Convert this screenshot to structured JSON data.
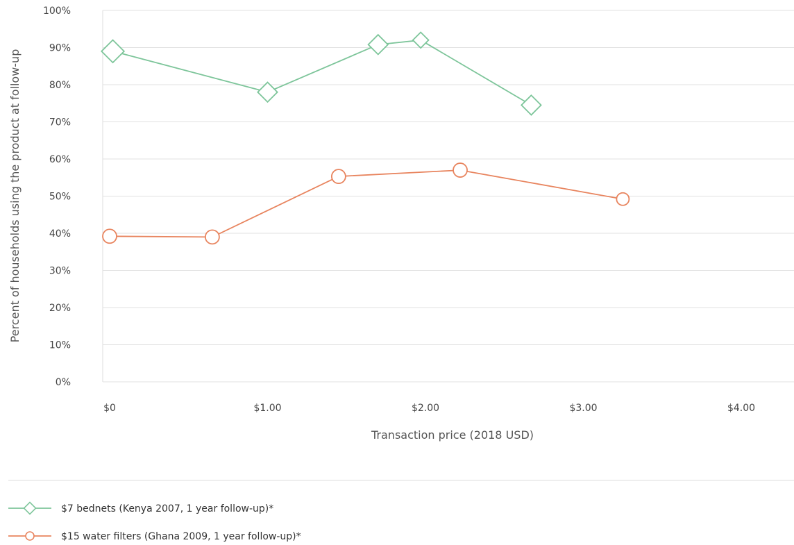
{
  "chart_data": {
    "type": "line",
    "xlabel": "Transaction price (2018 USD)",
    "ylabel": "Percent of households using the product at follow-up",
    "xlim": [
      0,
      4.35
    ],
    "ylim": [
      0,
      100
    ],
    "x_ticks": [
      0,
      1,
      2,
      3,
      4
    ],
    "x_tick_labels": [
      "$0",
      "$1.00",
      "$2.00",
      "$3.00",
      "$4.00"
    ],
    "y_ticks": [
      0,
      10,
      20,
      30,
      40,
      50,
      60,
      70,
      80,
      90,
      100
    ],
    "y_tick_labels": [
      "0%",
      "10%",
      "20%",
      "30%",
      "40%",
      "50%",
      "60%",
      "70%",
      "80%",
      "90%",
      "100%"
    ],
    "grid": "horizontal",
    "legend_position": "bottom-left",
    "series": [
      {
        "name": "$7 bednets (Kenya 2007, 1 year follow-up)*",
        "marker": "diamond",
        "color": "#7dc59a",
        "x": [
          0.02,
          1.0,
          1.7,
          1.97,
          2.67
        ],
        "y": [
          89,
          78,
          90.8,
          92,
          74.5
        ]
      },
      {
        "name": "$15 water filters (Ghana 2009, 1 year follow-up)*",
        "marker": "circle",
        "color": "#e8845e",
        "x": [
          0.0,
          0.65,
          1.45,
          2.22,
          3.25
        ],
        "y": [
          39.2,
          39,
          55.3,
          57,
          49.2
        ]
      }
    ]
  }
}
